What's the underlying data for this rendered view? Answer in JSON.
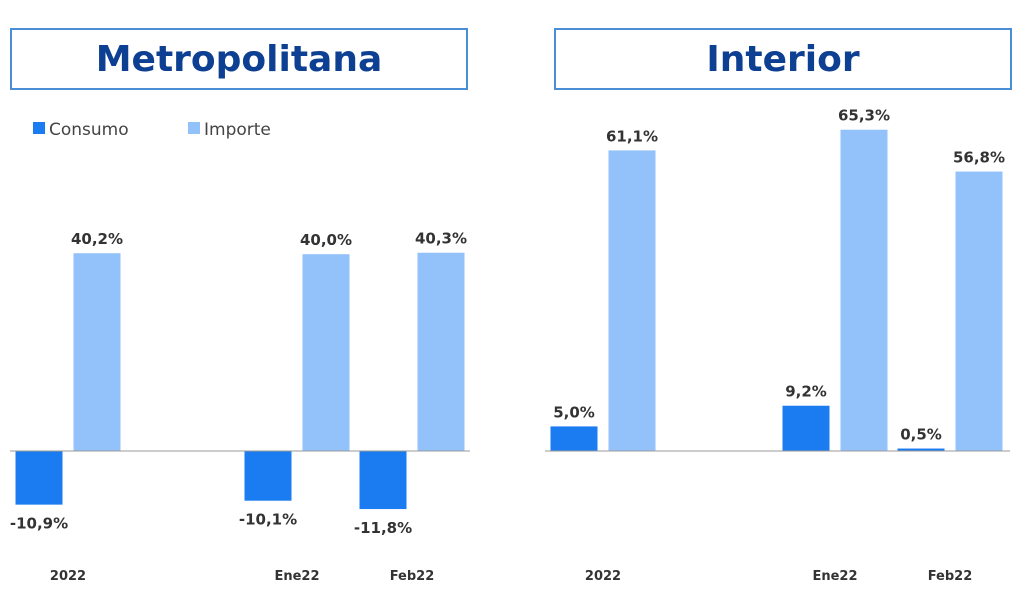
{
  "chart_data": [
    {
      "type": "bar",
      "title": "Metropolitana",
      "categories": [
        "2022",
        "Ene22",
        "Feb22"
      ],
      "series": [
        {
          "name": "Consumo",
          "values": [
            -10.9,
            -10.1,
            -11.8
          ],
          "labels": [
            "-10,9%",
            "-10,1%",
            "-11,8%"
          ],
          "color": "#1a7cf0"
        },
        {
          "name": "Importe",
          "values": [
            40.2,
            40.0,
            40.3
          ],
          "labels": [
            "40,2%",
            "40,0%",
            "40,3%"
          ],
          "color": "#93c2fb"
        }
      ],
      "legend": "top-left",
      "grid": false
    },
    {
      "type": "bar",
      "title": "Interior",
      "categories": [
        "2022",
        "Ene22",
        "Feb22"
      ],
      "series": [
        {
          "name": "Consumo",
          "values": [
            5.0,
            9.2,
            0.5
          ],
          "labels": [
            "5,0%",
            "9,2%",
            "0,5%"
          ],
          "color": "#1a7cf0"
        },
        {
          "name": "Importe",
          "values": [
            61.1,
            65.3,
            56.8
          ],
          "labels": [
            "61,1%",
            "65,3%",
            "56,8%"
          ],
          "color": "#93c2fb"
        }
      ],
      "legend": "none",
      "grid": false
    }
  ]
}
